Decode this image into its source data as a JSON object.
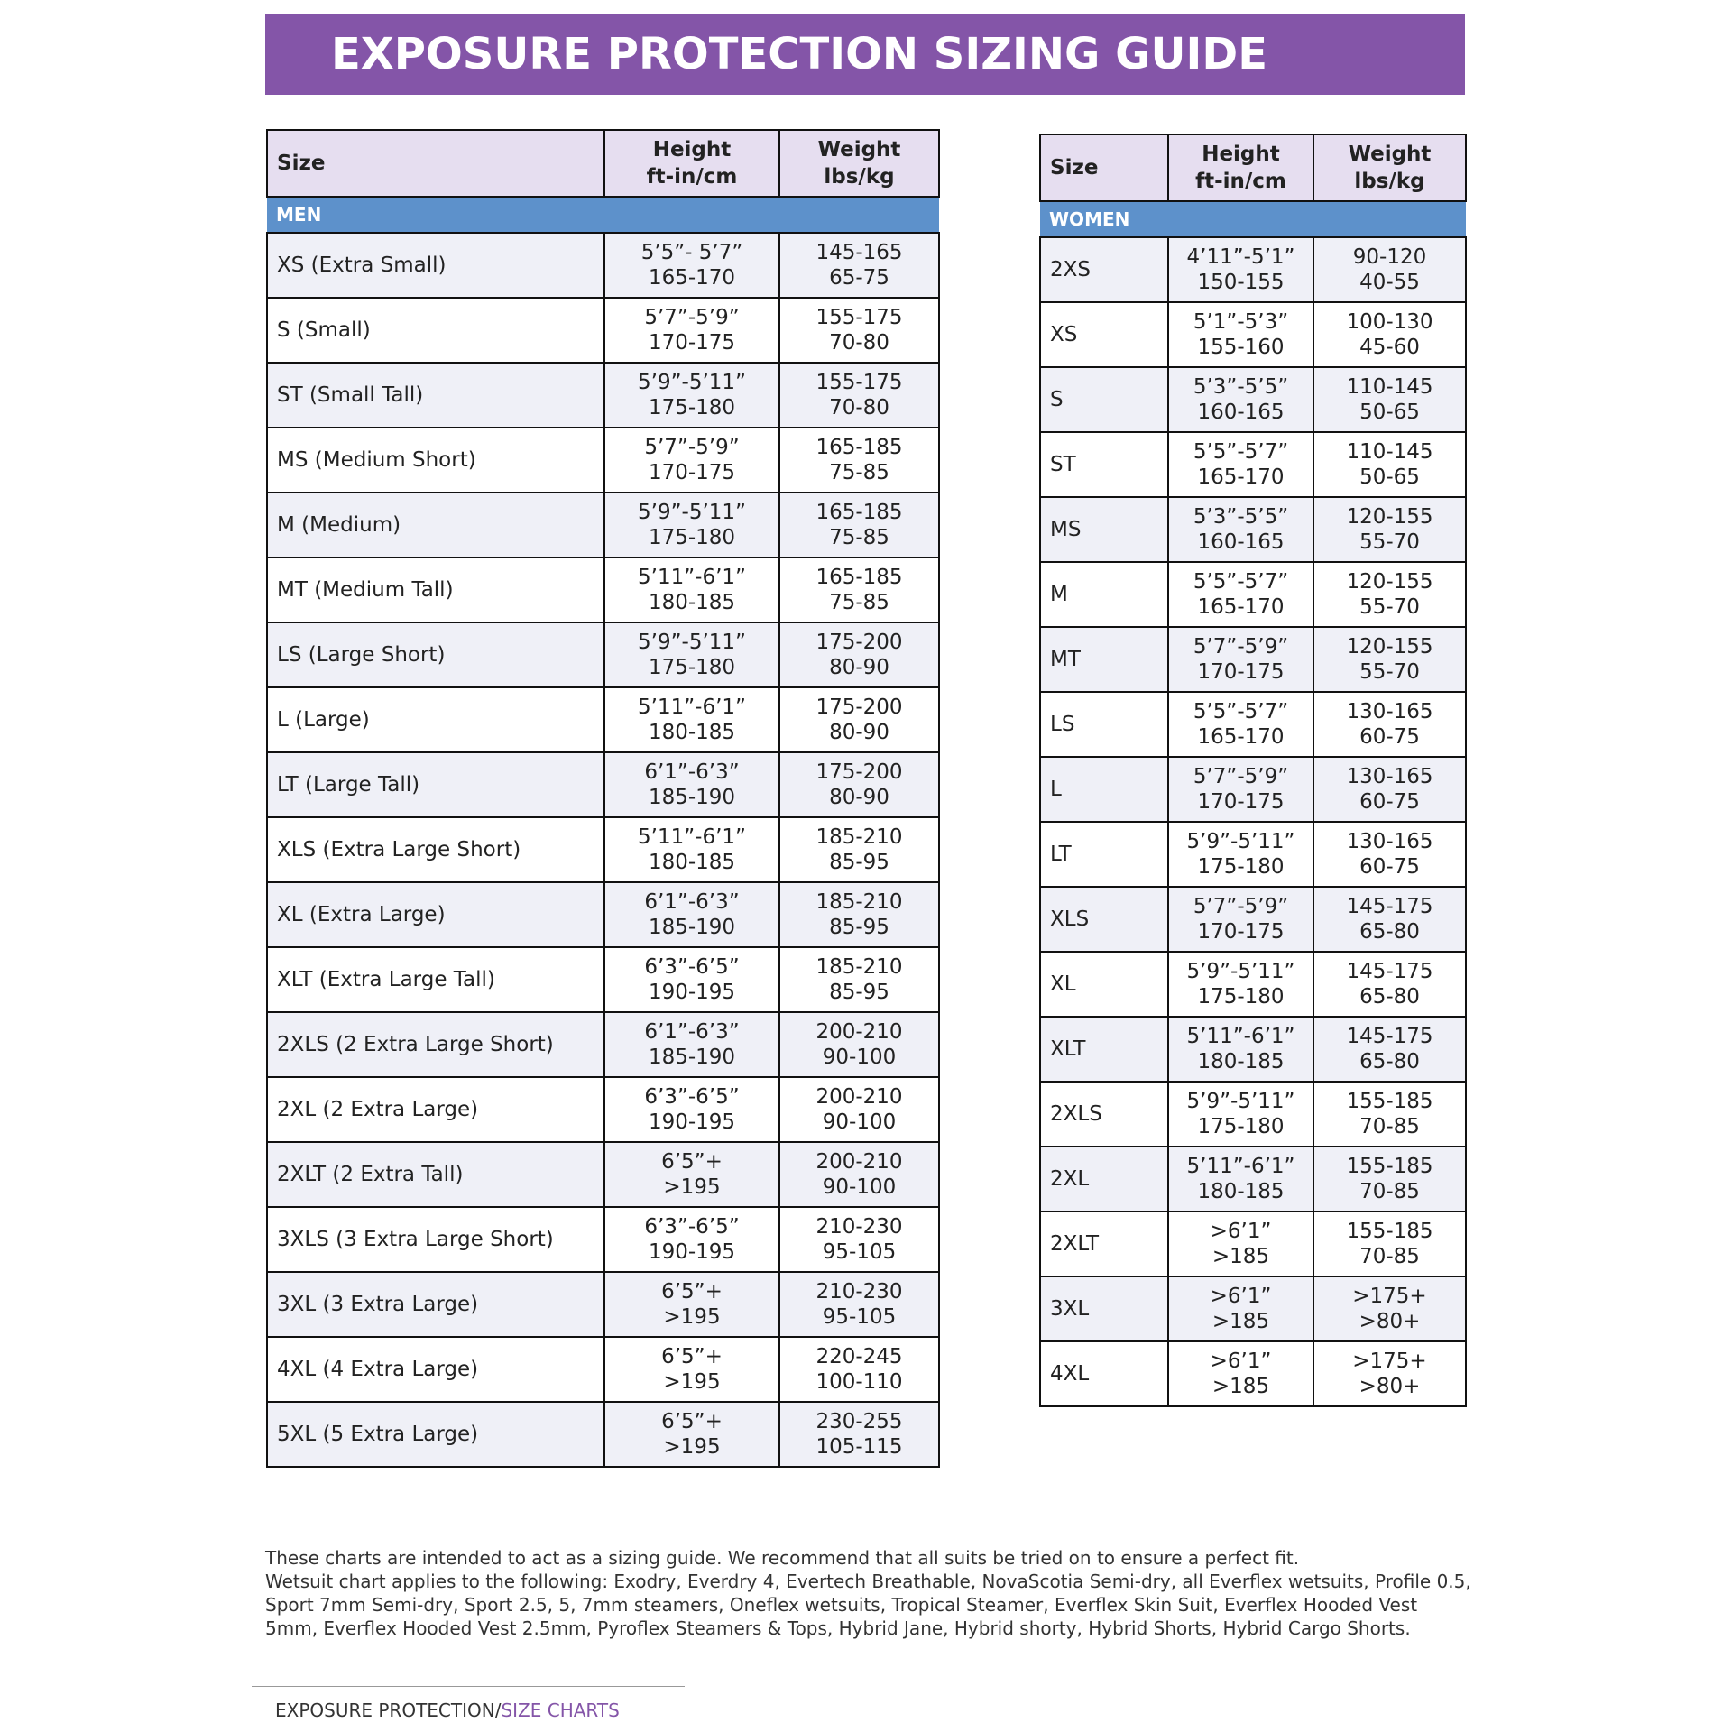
{
  "title": "EXPOSURE PROTECTION SIZING GUIDE",
  "men_table": {
    "headers": {
      "size": "Size",
      "height": [
        "Height",
        "ft-in/cm"
      ],
      "weight": [
        "Weight",
        "lbs/kg"
      ]
    },
    "section": "MEN",
    "rows": [
      {
        "size": "XS (Extra Small)",
        "height": [
          "5’5”- 5’7”",
          "165-170"
        ],
        "weight": [
          "145-165",
          "65-75"
        ]
      },
      {
        "size": "S (Small)",
        "height": [
          "5’7”-5’9”",
          "170-175"
        ],
        "weight": [
          "155-175",
          "70-80"
        ]
      },
      {
        "size": "ST (Small Tall)",
        "height": [
          "5’9”-5’11”",
          "175-180"
        ],
        "weight": [
          "155-175",
          "70-80"
        ]
      },
      {
        "size": "MS (Medium Short)",
        "height": [
          "5’7”-5’9”",
          "170-175"
        ],
        "weight": [
          "165-185",
          "75-85"
        ]
      },
      {
        "size": "M (Medium)",
        "height": [
          "5’9”-5’11”",
          "175-180"
        ],
        "weight": [
          "165-185",
          "75-85"
        ]
      },
      {
        "size": "MT (Medium Tall)",
        "height": [
          "5’11”-6’1”",
          "180-185"
        ],
        "weight": [
          "165-185",
          "75-85"
        ]
      },
      {
        "size": "LS (Large Short)",
        "height": [
          "5’9”-5’11”",
          "175-180"
        ],
        "weight": [
          "175-200",
          "80-90"
        ]
      },
      {
        "size": "L (Large)",
        "height": [
          "5’11”-6’1”",
          "180-185"
        ],
        "weight": [
          "175-200",
          "80-90"
        ]
      },
      {
        "size": "LT (Large Tall)",
        "height": [
          "6’1”-6’3”",
          "185-190"
        ],
        "weight": [
          "175-200",
          "80-90"
        ]
      },
      {
        "size": "XLS (Extra Large Short)",
        "height": [
          "5’11”-6’1”",
          "180-185"
        ],
        "weight": [
          "185-210",
          "85-95"
        ]
      },
      {
        "size": "XL (Extra Large)",
        "height": [
          "6’1”-6’3”",
          "185-190"
        ],
        "weight": [
          "185-210",
          "85-95"
        ]
      },
      {
        "size": "XLT (Extra Large Tall)",
        "height": [
          "6’3”-6’5”",
          "190-195"
        ],
        "weight": [
          "185-210",
          "85-95"
        ]
      },
      {
        "size": "2XLS (2 Extra Large Short)",
        "height": [
          "6’1”-6’3”",
          "185-190"
        ],
        "weight": [
          "200-210",
          "90-100"
        ]
      },
      {
        "size": "2XL (2 Extra Large)",
        "height": [
          "6’3”-6’5”",
          "190-195"
        ],
        "weight": [
          "200-210",
          "90-100"
        ]
      },
      {
        "size": "2XLT (2 Extra Tall)",
        "height": [
          "6’5”+",
          ">195"
        ],
        "weight": [
          "200-210",
          "90-100"
        ]
      },
      {
        "size": "3XLS (3 Extra Large Short)",
        "height": [
          "6’3”-6’5”",
          "190-195"
        ],
        "weight": [
          "210-230",
          "95-105"
        ]
      },
      {
        "size": "3XL (3 Extra Large)",
        "height": [
          "6’5”+",
          ">195"
        ],
        "weight": [
          "210-230",
          "95-105"
        ]
      },
      {
        "size": "4XL (4 Extra Large)",
        "height": [
          "6’5”+",
          ">195"
        ],
        "weight": [
          "220-245",
          "100-110"
        ]
      },
      {
        "size": "5XL (5 Extra Large)",
        "height": [
          "6’5”+",
          ">195"
        ],
        "weight": [
          "230-255",
          "105-115"
        ]
      }
    ]
  },
  "women_table": {
    "headers": {
      "size": "Size",
      "height": [
        "Height",
        "ft-in/cm"
      ],
      "weight": [
        "Weight",
        "lbs/kg"
      ]
    },
    "section": "WOMEN",
    "rows": [
      {
        "size": "2XS",
        "height": [
          "4’11”-5’1”",
          "150-155"
        ],
        "weight": [
          "90-120",
          "40-55"
        ]
      },
      {
        "size": "XS",
        "height": [
          "5’1”-5’3”",
          "155-160"
        ],
        "weight": [
          "100-130",
          "45-60"
        ]
      },
      {
        "size": "S",
        "height": [
          "5’3”-5’5”",
          "160-165"
        ],
        "weight": [
          "110-145",
          "50-65"
        ]
      },
      {
        "size": "ST",
        "height": [
          "5’5”-5’7”",
          "165-170"
        ],
        "weight": [
          "110-145",
          "50-65"
        ]
      },
      {
        "size": "MS",
        "height": [
          "5’3”-5’5”",
          "160-165"
        ],
        "weight": [
          "120-155",
          "55-70"
        ]
      },
      {
        "size": "M",
        "height": [
          "5’5”-5’7”",
          "165-170"
        ],
        "weight": [
          "120-155",
          "55-70"
        ]
      },
      {
        "size": "MT",
        "height": [
          "5’7”-5’9”",
          "170-175"
        ],
        "weight": [
          "120-155",
          "55-70"
        ]
      },
      {
        "size": "LS",
        "height": [
          "5’5”-5’7”",
          "165-170"
        ],
        "weight": [
          "130-165",
          "60-75"
        ]
      },
      {
        "size": "L",
        "height": [
          "5’7”-5’9”",
          "170-175"
        ],
        "weight": [
          "130-165",
          "60-75"
        ]
      },
      {
        "size": "LT",
        "height": [
          "5’9”-5’11”",
          "175-180"
        ],
        "weight": [
          "130-165",
          "60-75"
        ]
      },
      {
        "size": "XLS",
        "height": [
          "5’7”-5’9”",
          "170-175"
        ],
        "weight": [
          "145-175",
          "65-80"
        ]
      },
      {
        "size": "XL",
        "height": [
          "5’9”-5’11”",
          "175-180"
        ],
        "weight": [
          "145-175",
          "65-80"
        ]
      },
      {
        "size": "XLT",
        "height": [
          "5’11”-6’1”",
          "180-185"
        ],
        "weight": [
          "145-175",
          "65-80"
        ]
      },
      {
        "size": "2XLS",
        "height": [
          "5’9”-5’11”",
          "175-180"
        ],
        "weight": [
          "155-185",
          "70-85"
        ]
      },
      {
        "size": "2XL",
        "height": [
          "5’11”-6’1”",
          "180-185"
        ],
        "weight": [
          "155-185",
          "70-85"
        ]
      },
      {
        "size": "2XLT",
        "height": [
          ">6’1”",
          ">185"
        ],
        "weight": [
          "155-185",
          "70-85"
        ]
      },
      {
        "size": "3XL",
        "height": [
          ">6’1”",
          ">185"
        ],
        "weight": [
          ">175+",
          ">80+"
        ]
      },
      {
        "size": "4XL",
        "height": [
          ">6’1”",
          ">185"
        ],
        "weight": [
          ">175+",
          ">80+"
        ]
      }
    ]
  },
  "footnote": [
    "These charts are intended to act as a sizing guide. We recommend that all suits be tried on to ensure a perfect fit.",
    "Wetsuit chart applies to the following: Exodry, Everdry 4, Evertech Breathable, NovaScotia Semi-dry, all Everflex wetsuits, Profile 0.5, Sport 7mm Semi-dry, Sport 2.5, 5, 7mm steamers, Oneflex wetsuits, Tropical Steamer, Everflex Skin Suit, Everflex Hooded Vest 5mm, Everflex Hooded Vest 2.5mm, Pyroflex Steamers & Tops, Hybrid Jane, Hybrid shorty, Hybrid Shorts, Hybrid Cargo Shorts."
  ],
  "breadcrumb": {
    "section": "EXPOSURE PROTECTION/",
    "page": "SIZE CHARTS"
  }
}
